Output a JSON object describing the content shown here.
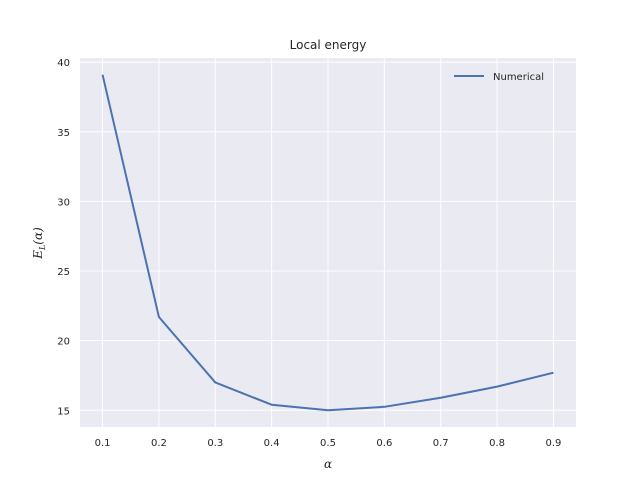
{
  "chart_data": {
    "type": "line",
    "title": "Local energy",
    "xlabel": "α",
    "ylabel_main": "E",
    "ylabel_sub": "L",
    "ylabel_arg": "(α)",
    "x": [
      0.1,
      0.2,
      0.3,
      0.4,
      0.5,
      0.6,
      0.7,
      0.8,
      0.9
    ],
    "series": [
      {
        "name": "Numerical",
        "color": "#4c72b0",
        "values": [
          39.1,
          21.7,
          17.0,
          15.4,
          15.0,
          15.25,
          15.9,
          16.7,
          17.7
        ]
      }
    ],
    "x_ticks": [
      "0.1",
      "0.2",
      "0.3",
      "0.4",
      "0.5",
      "0.6",
      "0.7",
      "0.8",
      "0.9"
    ],
    "y_ticks": [
      "15",
      "20",
      "25",
      "30",
      "35",
      "40"
    ],
    "xlim": [
      0.06,
      0.94
    ],
    "ylim": [
      13.8,
      40.3
    ],
    "grid": true,
    "legend_position": "top-right",
    "background_color": "#eaeaf2",
    "grid_color": "#ffffff"
  }
}
